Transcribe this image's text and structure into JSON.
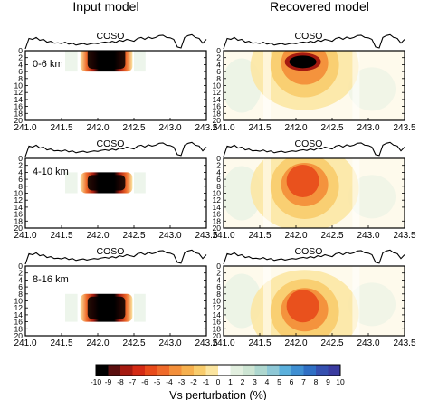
{
  "columns": [
    {
      "title": "Input model"
    },
    {
      "title": "Recovered model"
    }
  ],
  "topography_label": "COSO",
  "x_axis": {
    "ticks": [
      "241.0",
      "241.5",
      "242.0",
      "242.5",
      "243.0",
      "243.5"
    ],
    "range": [
      241.0,
      243.5
    ]
  },
  "y_axis": {
    "ticks": [
      "0",
      "2",
      "4",
      "6",
      "8",
      "10",
      "12",
      "14",
      "16",
      "18",
      "20"
    ],
    "range": [
      0,
      20
    ],
    "inverted": true
  },
  "rows": [
    {
      "depth_label": "0-6 km",
      "anomaly_top_km": 0,
      "anomaly_bottom_km": 6
    },
    {
      "depth_label": "4-10 km",
      "anomaly_top_km": 4,
      "anomaly_bottom_km": 10
    },
    {
      "depth_label": "8-16 km",
      "anomaly_top_km": 8,
      "anomaly_bottom_km": 16
    }
  ],
  "colorbar": {
    "ticks": [
      "-10",
      "-9",
      "-8",
      "-7",
      "-6",
      "-5",
      "-4",
      "-3",
      "-2",
      "-1",
      "0",
      "1",
      "2",
      "3",
      "4",
      "5",
      "6",
      "7",
      "8",
      "9",
      "10"
    ],
    "label": "Vs perturbation (%)",
    "colors": [
      "#000000",
      "#5a0f0f",
      "#a51a10",
      "#d42a14",
      "#e84a1a",
      "#ef6a2a",
      "#f38f3a",
      "#f6b04e",
      "#f8cc6c",
      "#fbe5a0",
      "#ffffff",
      "#e2efdf",
      "#cde5d3",
      "#aed7cf",
      "#8ec8d6",
      "#5bb0dc",
      "#3f8fd2",
      "#2f6fc4",
      "#3550b0",
      "#3a3ba0"
    ]
  }
}
